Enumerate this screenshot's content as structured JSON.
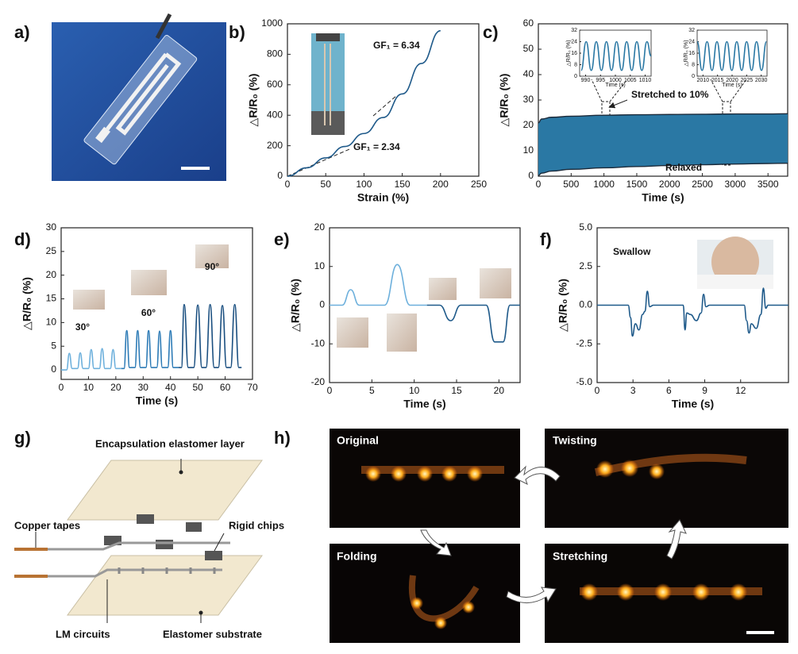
{
  "panel_labels": [
    "a)",
    "b)",
    "c)",
    "d)",
    "e)",
    "f)",
    "g)",
    "h)"
  ],
  "diagram": {
    "labels": [
      "Encapsulation elastomer layer",
      "Copper tapes",
      "Rigid chips",
      "LM circuits",
      "Elastomer substrate"
    ]
  },
  "photos": {
    "labels": [
      "Original",
      "Twisting",
      "Folding",
      "Stretching"
    ]
  },
  "chart_data": [
    {
      "type": "line",
      "xlabel": "Strain (%)",
      "ylabel": "△R/R₀ (%)",
      "xlim": [
        0,
        250
      ],
      "ylim": [
        0,
        1000
      ],
      "xticks": [
        0,
        50,
        100,
        150,
        200,
        250
      ],
      "yticks": [
        0,
        200,
        400,
        600,
        800,
        1000
      ],
      "series": [
        {
          "color": "#1f5a8a",
          "x": [
            0,
            25,
            50,
            75,
            100,
            125,
            150,
            175,
            200
          ],
          "values": [
            0,
            55,
            120,
            195,
            280,
            385,
            540,
            740,
            955
          ]
        }
      ],
      "annotations": [
        {
          "text": "GF₁ = 6.34",
          "color": "#111"
        },
        {
          "text": "GF₁ = 2.34",
          "color": "#111"
        }
      ]
    },
    {
      "type": "range",
      "xlabel": "Time (s)",
      "ylabel": "△R/R₀ (%)",
      "xlim": [
        0,
        3800
      ],
      "ylim": [
        0,
        60
      ],
      "xticks": [
        0,
        500,
        1000,
        1500,
        2000,
        2500,
        3000,
        3500
      ],
      "yticks": [
        0,
        10,
        20,
        30,
        40,
        50,
        60
      ],
      "fill": "#2a78a4",
      "x": [
        0,
        50,
        200,
        500,
        1000,
        1500,
        2000,
        2500,
        3000,
        3500,
        3800
      ],
      "series": [
        {
          "color": "#1b2a3a",
          "values": [
            21,
            22.5,
            23.2,
            23.6,
            24,
            24.2,
            24.3,
            24.4,
            24.5,
            24.5,
            24.6
          ]
        },
        {
          "color": "#1b2a3a",
          "values": [
            0.3,
            1.2,
            2,
            2.7,
            3.3,
            3.8,
            4.2,
            4.5,
            4.8,
            5,
            5.1
          ]
        }
      ],
      "annotations": [
        {
          "text": "Stretched to 10%",
          "color": "#111"
        },
        {
          "text": "Relaxed",
          "color": "#111"
        }
      ],
      "insets": [
        {
          "type": "line",
          "xlabel": "Time (s)",
          "ylabel": "△R/R₀ (%)",
          "xlim": [
            988,
            1012
          ],
          "ylim": [
            0,
            32
          ],
          "xticks": [
            990,
            995,
            1000,
            1005,
            1010
          ],
          "yticks": [
            0,
            8,
            16,
            24,
            32
          ],
          "series": [
            {
              "color": "#2a78a4",
              "x": [
                988.5,
                990.2,
                991.9,
                993.6,
                995.3,
                997,
                998.7,
                1000.4,
                1002.1,
                1003.8,
                1005.5,
                1007.2,
                1008.9,
                1010.6,
                1012
              ],
              "values": [
                4,
                24,
                4,
                24,
                4,
                24,
                4,
                24,
                4,
                24,
                4,
                24,
                4,
                24,
                14
              ]
            }
          ]
        },
        {
          "type": "line",
          "xlabel": "Time (s)",
          "ylabel": "△R/R₀ (%)",
          "xlim": [
            2008,
            2032
          ],
          "ylim": [
            0,
            32
          ],
          "xticks": [
            2010,
            2015,
            2020,
            2025,
            2030
          ],
          "yticks": [
            0,
            8,
            16,
            24,
            32
          ],
          "series": [
            {
              "color": "#2a78a4",
              "x": [
                2008,
                2009.7,
                2011.4,
                2013.1,
                2014.8,
                2016.5,
                2018.2,
                2019.9,
                2021.6,
                2023.3,
                2025,
                2026.7,
                2028.4,
                2030.1,
                2031.8
              ],
              "values": [
                24,
                4,
                24,
                4,
                24,
                4,
                24,
                4,
                24,
                4,
                24,
                4,
                24,
                4,
                24
              ]
            }
          ]
        }
      ]
    },
    {
      "type": "line",
      "xlabel": "Time (s)",
      "ylabel": "△R/R₀ (%)",
      "xlim": [
        0,
        70
      ],
      "ylim": [
        -2,
        30
      ],
      "xticks": [
        0,
        10,
        20,
        30,
        40,
        50,
        60,
        70
      ],
      "yticks": [
        0,
        5,
        10,
        15,
        20,
        25,
        30
      ],
      "series": [
        {
          "color": "#6db0dc",
          "x": [
            0,
            2,
            3,
            4,
            6,
            7,
            8,
            10,
            11,
            12,
            14,
            15,
            16,
            18,
            19,
            20,
            22
          ],
          "values": [
            0,
            0,
            3.5,
            0.3,
            0.3,
            3.6,
            0.3,
            0.3,
            4.3,
            0.3,
            0.3,
            4.5,
            0.3,
            0.3,
            4.3,
            0.3,
            0.3
          ]
        },
        {
          "color": "#2d7bb6",
          "x": [
            22,
            23,
            24,
            25,
            27,
            28,
            29,
            31,
            32,
            33,
            35,
            36,
            37,
            39,
            40,
            41,
            43
          ],
          "values": [
            0.3,
            0.3,
            8.3,
            0.5,
            0.5,
            8.3,
            0.5,
            0.5,
            8.3,
            0.5,
            0.5,
            8.2,
            0.5,
            0.5,
            8.3,
            0.5,
            0.5
          ]
        },
        {
          "color": "#1a4f80",
          "x": [
            43,
            44,
            45,
            46.5,
            48.5,
            50,
            51.5,
            53,
            54.5,
            56,
            57.5,
            59,
            60.5,
            62,
            63.5,
            65,
            66
          ],
          "values": [
            0.5,
            0.5,
            13.8,
            0.5,
            0.5,
            13.7,
            0.5,
            0.5,
            13.8,
            0.5,
            0.5,
            13.6,
            0.5,
            0.5,
            13.8,
            0.5,
            0.5
          ]
        }
      ],
      "annotations": [
        {
          "text": "30°",
          "color": "#6db0dc"
        },
        {
          "text": "60°",
          "color": "#2d7bb6"
        },
        {
          "text": "90°",
          "color": "#1a4f80"
        }
      ]
    },
    {
      "type": "line",
      "xlabel": "Time (s)",
      "ylabel": "△R/R₀ (%)",
      "xlim": [
        0,
        22.5
      ],
      "ylim": [
        -20,
        20
      ],
      "xticks": [
        0,
        5,
        10,
        15,
        20
      ],
      "yticks": [
        -20,
        -10,
        0,
        10,
        20
      ],
      "series": [
        {
          "color": "#6db0dc",
          "x": [
            0,
            1.5,
            2.5,
            3.5,
            6.5,
            8,
            9.5,
            11.5
          ],
          "values": [
            0,
            0,
            4,
            0,
            0,
            10.5,
            0,
            0
          ]
        },
        {
          "color": "#1f5a8a",
          "x": [
            11.5,
            13,
            14.3,
            15.5,
            18.5,
            19.5,
            20.5,
            21.3,
            22.5
          ],
          "values": [
            0,
            0,
            -4,
            0,
            0,
            -9.5,
            -9.5,
            0,
            0
          ]
        }
      ]
    },
    {
      "type": "line",
      "xlabel": "Time (s)",
      "ylabel": "△R/R₀ (%)",
      "xlim": [
        0,
        16
      ],
      "ylim": [
        -5,
        5
      ],
      "xticks": [
        0,
        3,
        6,
        9,
        12
      ],
      "yticks": [
        {
          "value": -5,
          "label": "-5.0"
        },
        {
          "value": -2.5,
          "label": "-2.5"
        },
        {
          "value": 0,
          "label": "0.0"
        },
        {
          "value": 2.5,
          "label": "2.5"
        },
        {
          "value": 5,
          "label": "5.0"
        }
      ],
      "series": [
        {
          "color": "#1f5a8a",
          "x": [
            0,
            2.6,
            2.8,
            2.95,
            3.2,
            3.5,
            3.8,
            4.0,
            4.2,
            4.4,
            4.7,
            7.2,
            7.35,
            7.5,
            7.8,
            8.3,
            8.7,
            8.9,
            9.1,
            9.4,
            12.3,
            12.5,
            12.7,
            12.9,
            13.3,
            13.7,
            13.9,
            14.1,
            14.3,
            14.6,
            16
          ],
          "values": [
            0,
            0,
            -0.8,
            -2.0,
            -1.2,
            -1.6,
            -0.6,
            -0.4,
            0.9,
            -0.1,
            0,
            0,
            -1.6,
            -0.5,
            -0.6,
            -1.0,
            -0.5,
            0.7,
            -0.1,
            0,
            0,
            -1.0,
            -1.8,
            -1.2,
            -1.5,
            -0.6,
            1.1,
            -0.2,
            0,
            0,
            0
          ]
        }
      ],
      "annotations": [
        {
          "text": "Swallow",
          "color": "#111"
        }
      ]
    }
  ]
}
